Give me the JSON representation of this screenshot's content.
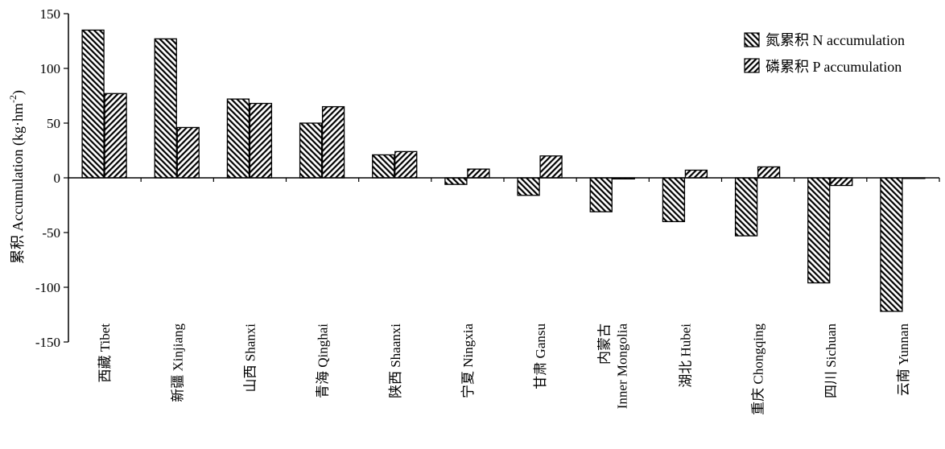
{
  "chart_data": {
    "type": "bar",
    "ylabel": "累积 Accumulation (kg·hm",
    "ylabel_sup": "-2",
    "ylabel_close": ")",
    "ylim": [
      -150,
      150
    ],
    "yticks": [
      "150",
      "100",
      "50",
      "0",
      "-50",
      "-100",
      "-150"
    ],
    "ytick_values": [
      150,
      100,
      50,
      0,
      -50,
      -100,
      -150
    ],
    "grid": false,
    "legend_position": "top-right",
    "categories": [
      {
        "lines": [
          "西藏 Tibet"
        ]
      },
      {
        "lines": [
          "新疆 Xinjiang"
        ]
      },
      {
        "lines": [
          "山西 Shanxi"
        ]
      },
      {
        "lines": [
          "青海 Qinghai"
        ]
      },
      {
        "lines": [
          "陕西 Shaanxi"
        ]
      },
      {
        "lines": [
          "宁夏 Ningxia"
        ]
      },
      {
        "lines": [
          "甘肃 Gansu"
        ]
      },
      {
        "lines": [
          "内蒙古",
          "Inner Mongolia"
        ]
      },
      {
        "lines": [
          "湖北 Hubei"
        ]
      },
      {
        "lines": [
          "重庆 Chongqing"
        ]
      },
      {
        "lines": [
          "四川 Sichuan"
        ]
      },
      {
        "lines": [
          "云南 Yunnan"
        ]
      }
    ],
    "series": [
      {
        "name": "氮累积 N accumulation",
        "pattern": "hatch-right",
        "values": [
          135,
          127,
          72,
          50,
          21,
          -6,
          -16,
          -31,
          -40,
          -53,
          -96,
          -122
        ]
      },
      {
        "name": "磷累积 P accumulation",
        "pattern": "hatch-left",
        "values": [
          77,
          46,
          68,
          65,
          24,
          8,
          20,
          -1,
          7,
          10,
          -7,
          0
        ]
      }
    ],
    "colors": {
      "bar_fill": "#ffffff",
      "hatch": "#000000",
      "axis": "#000000"
    }
  }
}
